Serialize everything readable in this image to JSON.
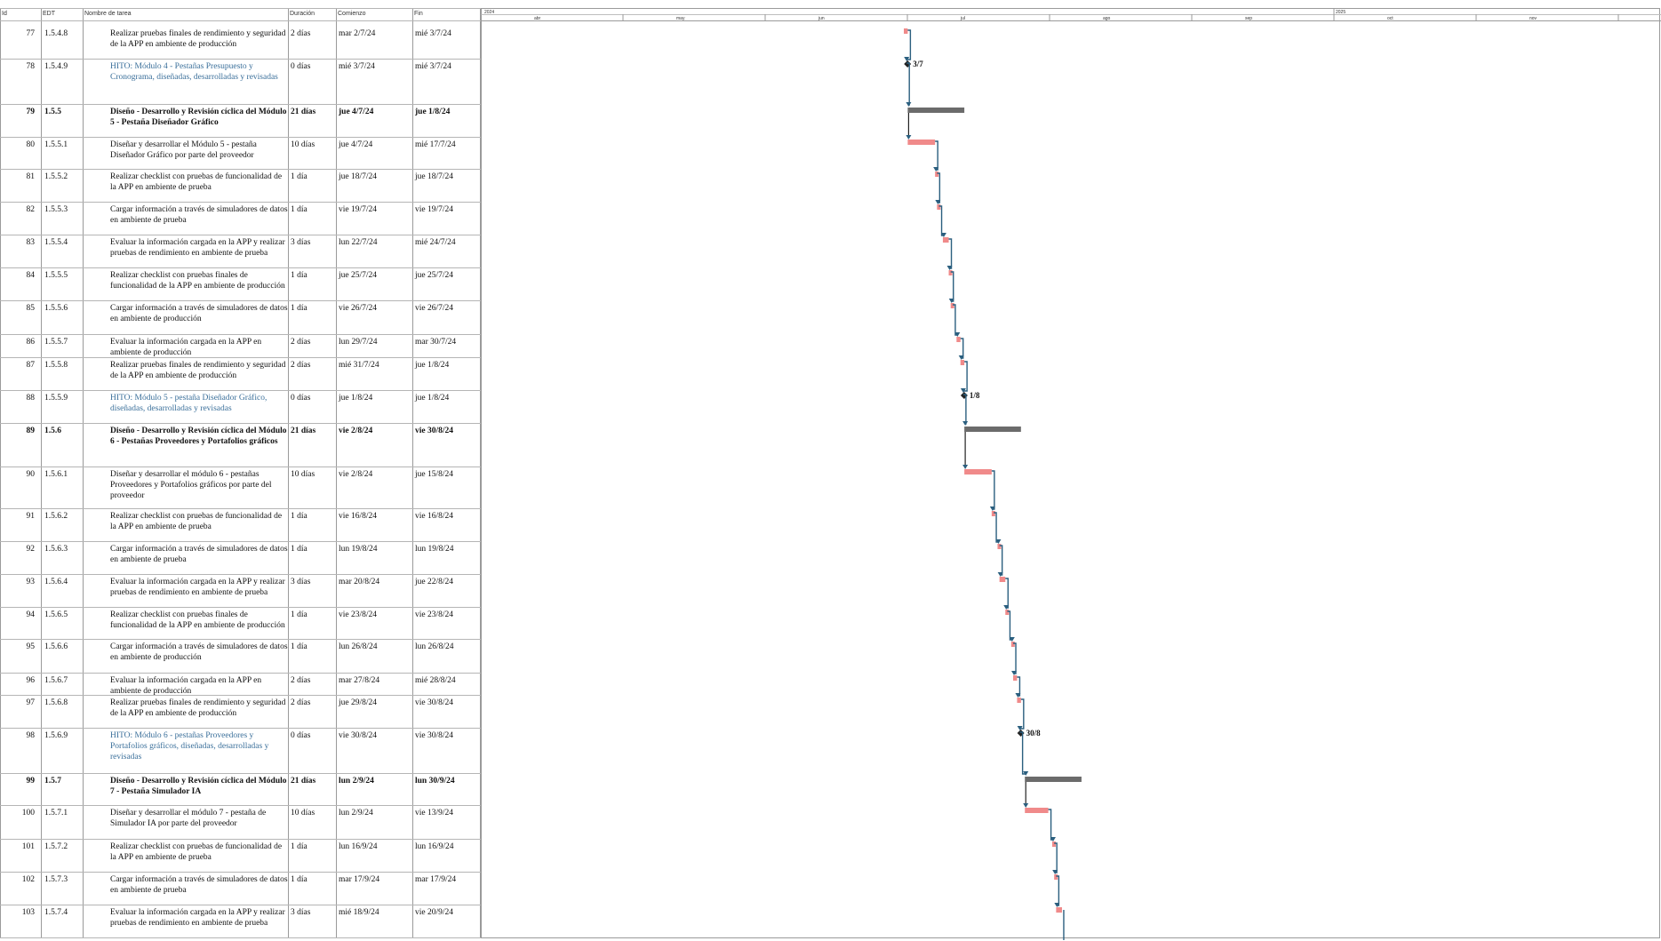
{
  "headers": {
    "id": "Id",
    "edt": "EDT",
    "name": "Nombre de tarea",
    "dur": "Duración",
    "start": "Comienzo",
    "end": "Fin"
  },
  "timescale": {
    "years": [
      {
        "label": "2024"
      },
      {
        "label": "2025"
      }
    ],
    "quarters": [
      "abr",
      "may",
      "jun",
      "jul",
      "ago",
      "sep",
      "oct",
      "nov",
      "dic",
      "ene",
      "feb",
      "mar"
    ]
  },
  "colors": {
    "task": "#f08a8a",
    "summary": "#6b6b6b",
    "link": "#2b5f7f",
    "milestone": "#222222"
  },
  "rows": [
    {
      "id": "77",
      "edt": "1.5.4.8",
      "name": "Realizar pruebas finales de rendimiento y seguridad de la APP en ambiente de producción",
      "dur": "2 días",
      "start": "mar 2/7/24",
      "end": "mié 3/7/24",
      "kind": "task",
      "day_start": 92,
      "day_end": 93
    },
    {
      "id": "78",
      "edt": "1.5.4.9",
      "name": "HITO: Módulo 4 - Pestañas Presupuesto y Cronograma, diseñadas, desarrolladas y revisadas",
      "dur": "0 días",
      "start": "mié 3/7/24",
      "end": "mié 3/7/24",
      "kind": "milestone",
      "day_start": 93,
      "day_end": 93,
      "mlabel": "3/7"
    },
    {
      "id": "79",
      "edt": "1.5.5",
      "name": "Diseño - Desarrollo y Revisión cíclica del Módulo 5 - Pestaña Diseñador Gráfico",
      "dur": "21 días",
      "start": "jue 4/7/24",
      "end": "jue 1/8/24",
      "kind": "summary",
      "day_start": 94,
      "day_end": 122
    },
    {
      "id": "80",
      "edt": "1.5.5.1",
      "name": "Diseñar y desarrollar el Módulo 5 - pestaña Diseñador Gráfico por parte del proveedor",
      "dur": "10 días",
      "start": "jue 4/7/24",
      "end": "mié 17/7/24",
      "kind": "task",
      "day_start": 94,
      "day_end": 107
    },
    {
      "id": "81",
      "edt": "1.5.5.2",
      "name": "Realizar checklist con pruebas de funcionalidad de la APP en ambiente de prueba",
      "dur": "1 día",
      "start": "jue 18/7/24",
      "end": "jue 18/7/24",
      "kind": "task",
      "day_start": 108,
      "day_end": 108
    },
    {
      "id": "82",
      "edt": "1.5.5.3",
      "name": "Cargar información a través de simuladores de datos en ambiente de prueba",
      "dur": "1 día",
      "start": "vie 19/7/24",
      "end": "vie 19/7/24",
      "kind": "task",
      "day_start": 109,
      "day_end": 109
    },
    {
      "id": "83",
      "edt": "1.5.5.4",
      "name": "Evaluar la información cargada en la APP y realizar pruebas de rendimiento en ambiente de prueba",
      "dur": "3 días",
      "start": "lun 22/7/24",
      "end": "mié 24/7/24",
      "kind": "task",
      "day_start": 112,
      "day_end": 114
    },
    {
      "id": "84",
      "edt": "1.5.5.5",
      "name": "Realizar checklist con pruebas finales de funcionalidad de la APP en ambiente de producción",
      "dur": "1 día",
      "start": "jue 25/7/24",
      "end": "jue 25/7/24",
      "kind": "task",
      "day_start": 115,
      "day_end": 115
    },
    {
      "id": "85",
      "edt": "1.5.5.6",
      "name": "Cargar información a través de simuladores de datos en ambiente de producción",
      "dur": "1 día",
      "start": "vie 26/7/24",
      "end": "vie 26/7/24",
      "kind": "task",
      "day_start": 116,
      "day_end": 116
    },
    {
      "id": "86",
      "edt": "1.5.5.7",
      "name": "Evaluar la información cargada en la APP en ambiente de producción",
      "dur": "2 días",
      "start": "lun 29/7/24",
      "end": "mar 30/7/24",
      "kind": "task",
      "day_start": 119,
      "day_end": 120
    },
    {
      "id": "87",
      "edt": "1.5.5.8",
      "name": "Realizar pruebas finales de rendimiento y seguridad de la APP en ambiente de producción",
      "dur": "2 días",
      "start": "mié 31/7/24",
      "end": "jue 1/8/24",
      "kind": "task",
      "day_start": 121,
      "day_end": 122
    },
    {
      "id": "88",
      "edt": "1.5.5.9",
      "name": "HITO: Módulo 5 - pestaña Diseñador Gráfico, diseñadas, desarrolladas y revisadas",
      "dur": "0 días",
      "start": "jue 1/8/24",
      "end": "jue 1/8/24",
      "kind": "milestone",
      "day_start": 122,
      "day_end": 122,
      "mlabel": "1/8"
    },
    {
      "id": "89",
      "edt": "1.5.6",
      "name": "Diseño - Desarrollo y Revisión cíclica del Módulo 6 - Pestañas Proveedores y Portafolios gráficos",
      "dur": "21 días",
      "start": "vie 2/8/24",
      "end": "vie 30/8/24",
      "kind": "summary",
      "day_start": 123,
      "day_end": 151
    },
    {
      "id": "90",
      "edt": "1.5.6.1",
      "name": "Diseñar y desarrollar el módulo 6 - pestañas Proveedores y Portafolios gráficos por parte del proveedor",
      "dur": "10 días",
      "start": "vie 2/8/24",
      "end": "jue 15/8/24",
      "kind": "task",
      "day_start": 123,
      "day_end": 136
    },
    {
      "id": "91",
      "edt": "1.5.6.2",
      "name": "Realizar checklist con pruebas de funcionalidad de la APP en ambiente de prueba",
      "dur": "1 día",
      "start": "vie 16/8/24",
      "end": "vie 16/8/24",
      "kind": "task",
      "day_start": 137,
      "day_end": 137
    },
    {
      "id": "92",
      "edt": "1.5.6.3",
      "name": "Cargar información a través de simuladores de datos en ambiente de prueba",
      "dur": "1 día",
      "start": "lun 19/8/24",
      "end": "lun 19/8/24",
      "kind": "task",
      "day_start": 140,
      "day_end": 140
    },
    {
      "id": "93",
      "edt": "1.5.6.4",
      "name": "Evaluar la información cargada en la APP y realizar pruebas de rendimiento en ambiente de prueba",
      "dur": "3 días",
      "start": "mar 20/8/24",
      "end": "jue 22/8/24",
      "kind": "task",
      "day_start": 141,
      "day_end": 143
    },
    {
      "id": "94",
      "edt": "1.5.6.5",
      "name": "Realizar checklist con pruebas finales de funcionalidad de la APP en ambiente de producción",
      "dur": "1 día",
      "start": "vie 23/8/24",
      "end": "vie 23/8/24",
      "kind": "task",
      "day_start": 144,
      "day_end": 144
    },
    {
      "id": "95",
      "edt": "1.5.6.6",
      "name": "Cargar información a través de simuladores de datos en ambiente de producción",
      "dur": "1 día",
      "start": "lun 26/8/24",
      "end": "lun 26/8/24",
      "kind": "task",
      "day_start": 147,
      "day_end": 147
    },
    {
      "id": "96",
      "edt": "1.5.6.7",
      "name": "Evaluar la información cargada en la APP en ambiente de producción",
      "dur": "2 días",
      "start": "mar 27/8/24",
      "end": "mié 28/8/24",
      "kind": "task",
      "day_start": 148,
      "day_end": 149
    },
    {
      "id": "97",
      "edt": "1.5.6.8",
      "name": "Realizar pruebas finales de rendimiento y seguridad de la APP en ambiente de producción",
      "dur": "2 días",
      "start": "jue 29/8/24",
      "end": "vie 30/8/24",
      "kind": "task",
      "day_start": 150,
      "day_end": 151
    },
    {
      "id": "98",
      "edt": "1.5.6.9",
      "name": "HITO: Módulo 6 - pestañas Proveedores y Portafolios gráficos, diseñadas, desarrolladas y revisadas",
      "dur": "0 días",
      "start": "vie 30/8/24",
      "end": "vie 30/8/24",
      "kind": "milestone",
      "day_start": 151,
      "day_end": 151,
      "mlabel": "30/8"
    },
    {
      "id": "99",
      "edt": "1.5.7",
      "name": "Diseño - Desarrollo y Revisión cíclica del Módulo 7 - Pestaña Simulador IA",
      "dur": "21 días",
      "start": "lun 2/9/24",
      "end": "lun 30/9/24",
      "kind": "summary",
      "day_start": 154,
      "day_end": 182
    },
    {
      "id": "100",
      "edt": "1.5.7.1",
      "name": "Diseñar y desarrollar el módulo 7 - pestaña de Simulador IA por parte del proveedor",
      "dur": "10 días",
      "start": "lun 2/9/24",
      "end": "vie 13/9/24",
      "kind": "task",
      "day_start": 154,
      "day_end": 165
    },
    {
      "id": "101",
      "edt": "1.5.7.2",
      "name": "Realizar checklist con pruebas de funcionalidad de la APP en ambiente de prueba",
      "dur": "1 día",
      "start": "lun 16/9/24",
      "end": "lun 16/9/24",
      "kind": "task",
      "day_start": 168,
      "day_end": 168
    },
    {
      "id": "102",
      "edt": "1.5.7.3",
      "name": "Cargar información a través de simuladores de datos en ambiente de prueba",
      "dur": "1 día",
      "start": "mar 17/9/24",
      "end": "mar 17/9/24",
      "kind": "task",
      "day_start": 169,
      "day_end": 169
    },
    {
      "id": "103",
      "edt": "1.5.7.4",
      "name": "Evaluar la información cargada en la APP y realizar pruebas de rendimiento en ambiente de prueba",
      "dur": "3 días",
      "start": "mié 18/9/24",
      "end": "vie 20/9/24",
      "kind": "task",
      "day_start": 170,
      "day_end": 172
    }
  ]
}
